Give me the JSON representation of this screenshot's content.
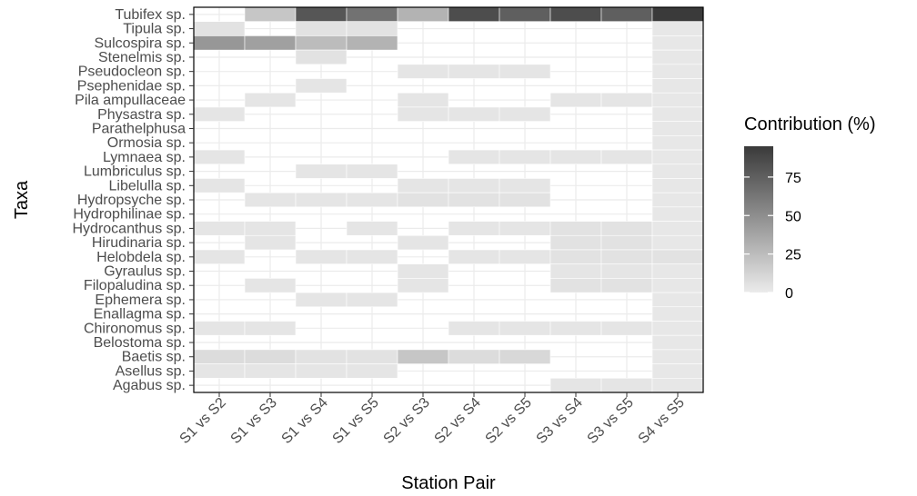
{
  "chart_data": {
    "type": "heatmap",
    "xlabel": "Station Pair",
    "ylabel": "Taxa",
    "x": [
      "S1 vs S2",
      "S1 vs S3",
      "S1 vs S4",
      "S1 vs S5",
      "S2 vs S3",
      "S2 vs S4",
      "S2 vs S5",
      "S3 vs S4",
      "S3 vs S5",
      "S4 vs S5"
    ],
    "y": [
      "Tubifex sp.",
      "Tipula sp.",
      "Sulcospira sp.",
      "Stenelmis sp.",
      "Pseudocleon sp.",
      "Psephenidae sp.",
      "Pila ampullaceae",
      "Physastra sp.",
      "Parathelphusa",
      "Ormosia sp.",
      "Lymnaea sp.",
      "Lumbriculus sp.",
      "Libelulla sp.",
      "Hydropsyche sp.",
      "Hydrophilinae sp.",
      "Hydrocanthus sp.",
      "Hirudinaria sp.",
      "Helobdela sp.",
      "Gyraulus sp.",
      "Filopaludina sp.",
      "Ephemera sp.",
      "Enallagma sp.",
      "Chironomus sp.",
      "Belostoma sp.",
      "Baetis sp.",
      "Asellus sp.",
      "Agabus sp."
    ],
    "values": [
      [
        null,
        20,
        80,
        65,
        30,
        85,
        75,
        85,
        75,
        95
      ],
      [
        5,
        null,
        5,
        5,
        null,
        null,
        null,
        null,
        null,
        2
      ],
      [
        45,
        40,
        25,
        30,
        null,
        null,
        null,
        null,
        null,
        2
      ],
      [
        null,
        null,
        5,
        null,
        null,
        null,
        null,
        null,
        null,
        2
      ],
      [
        null,
        null,
        null,
        null,
        3,
        3,
        3,
        null,
        null,
        2
      ],
      [
        null,
        null,
        3,
        null,
        null,
        null,
        null,
        null,
        null,
        2
      ],
      [
        null,
        3,
        null,
        null,
        3,
        null,
        null,
        3,
        3,
        2
      ],
      [
        3,
        null,
        null,
        null,
        3,
        3,
        3,
        null,
        null,
        2
      ],
      [
        null,
        null,
        null,
        null,
        null,
        null,
        null,
        null,
        null,
        2
      ],
      [
        null,
        null,
        null,
        null,
        null,
        null,
        null,
        null,
        null,
        2
      ],
      [
        3,
        null,
        null,
        null,
        null,
        3,
        3,
        3,
        3,
        2
      ],
      [
        null,
        null,
        3,
        3,
        null,
        null,
        null,
        null,
        null,
        2
      ],
      [
        3,
        null,
        null,
        null,
        3,
        3,
        3,
        null,
        null,
        2
      ],
      [
        null,
        3,
        3,
        3,
        5,
        5,
        5,
        null,
        null,
        2
      ],
      [
        null,
        null,
        null,
        null,
        null,
        null,
        null,
        null,
        null,
        2
      ],
      [
        3,
        3,
        null,
        3,
        null,
        3,
        3,
        5,
        5,
        2
      ],
      [
        null,
        3,
        null,
        null,
        3,
        null,
        null,
        5,
        5,
        2
      ],
      [
        3,
        null,
        3,
        3,
        null,
        3,
        3,
        5,
        5,
        5
      ],
      [
        null,
        null,
        null,
        null,
        3,
        null,
        null,
        3,
        3,
        2
      ],
      [
        null,
        3,
        null,
        null,
        3,
        null,
        null,
        5,
        5,
        2
      ],
      [
        null,
        null,
        3,
        3,
        null,
        null,
        null,
        null,
        null,
        2
      ],
      [
        null,
        null,
        null,
        null,
        null,
        null,
        null,
        null,
        null,
        2
      ],
      [
        3,
        3,
        null,
        null,
        null,
        3,
        3,
        3,
        3,
        2
      ],
      [
        null,
        null,
        null,
        null,
        null,
        null,
        null,
        null,
        null,
        2
      ],
      [
        8,
        8,
        5,
        5,
        20,
        8,
        10,
        null,
        null,
        2
      ],
      [
        3,
        3,
        3,
        3,
        null,
        null,
        null,
        null,
        null,
        2
      ],
      [
        null,
        null,
        null,
        null,
        null,
        null,
        null,
        3,
        3,
        2
      ]
    ],
    "legend": {
      "title": "Contribution (%)",
      "range": [
        0,
        95
      ],
      "ticks": [
        0,
        25,
        50,
        75
      ],
      "low_color": "#ebebeb",
      "high_color": "#3a3a3a",
      "placement": "right"
    },
    "grid": true
  }
}
